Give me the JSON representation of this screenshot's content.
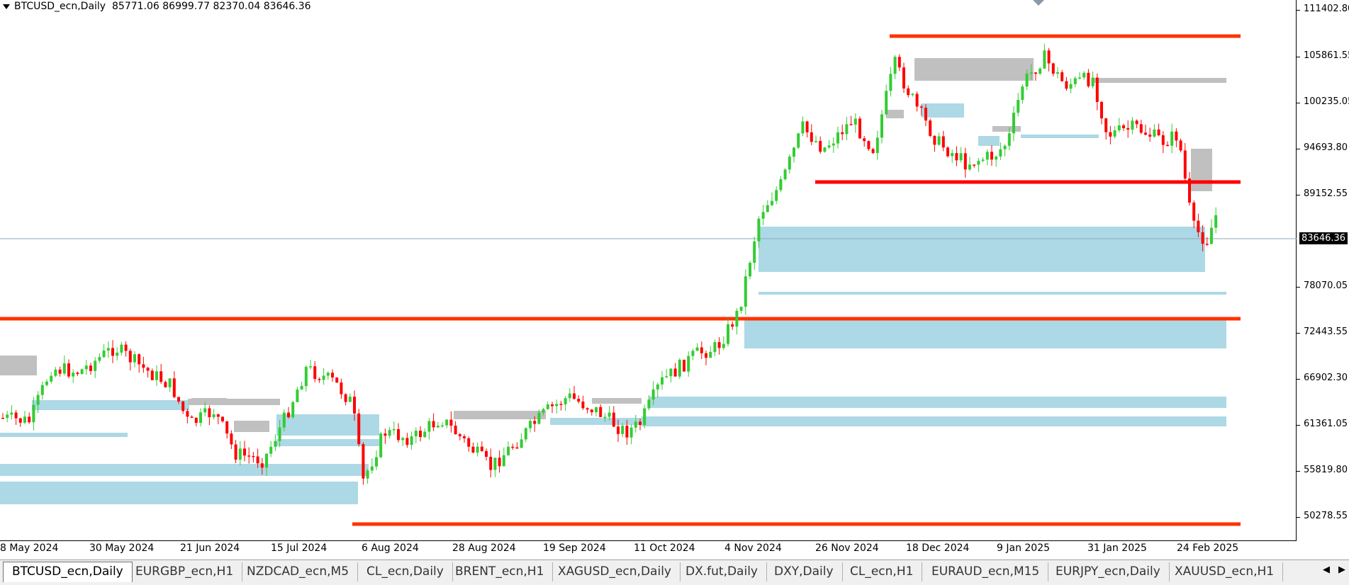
{
  "chart": {
    "header_symbol": "BTCUSD_ecn,Daily",
    "header_ohlc": "85771.06 86999.77 82370.04 83646.36",
    "current_price": "83646.36",
    "y_ticks": [
      "111402.80",
      "105861.55",
      "100235.05",
      "94693.80",
      "89152.55",
      "83646.36",
      "78070.05",
      "72443.55",
      "66902.30",
      "61361.05",
      "55819.80",
      "50278.55"
    ],
    "x_ticks": [
      "8 May 2024",
      "30 May 2024",
      "21 Jun 2024",
      "15 Jul 2024",
      "6 Aug 2024",
      "28 Aug 2024",
      "19 Sep 2024",
      "11 Oct 2024",
      "4 Nov 2024",
      "26 Nov 2024",
      "18 Dec 2024",
      "9 Jan 2025",
      "31 Jan 2025",
      "24 Feb 2025"
    ],
    "colors": {
      "bull": "#33cc33",
      "bear": "#ff0000",
      "zone_demand": "#add8e6",
      "zone_supply": "#c0c0c0",
      "level_line": "#ff3300",
      "price_line": "#8fa8b8"
    }
  },
  "tabs": [
    {
      "label": "BTCUSD_ecn,Daily",
      "active": true
    },
    {
      "label": "EURGBP_ecn,H1"
    },
    {
      "label": "NZDCAD_ecn,M5"
    },
    {
      "label": "CL_ecn,Daily"
    },
    {
      "label": "BRENT_ecn,H1"
    },
    {
      "label": "XAGUSD_ecn,Daily"
    },
    {
      "label": "DX.fut,Daily"
    },
    {
      "label": "DXY,Daily"
    },
    {
      "label": "CL_ecn,H1"
    },
    {
      "label": "EURAUD_ecn,M15"
    },
    {
      "label": "EURJPY_ecn,Daily"
    },
    {
      "label": "XAUUSD_ecn,H1"
    }
  ],
  "nav": {
    "left_icon": "scroll-left-icon",
    "right_icon": "scroll-right-icon"
  }
}
